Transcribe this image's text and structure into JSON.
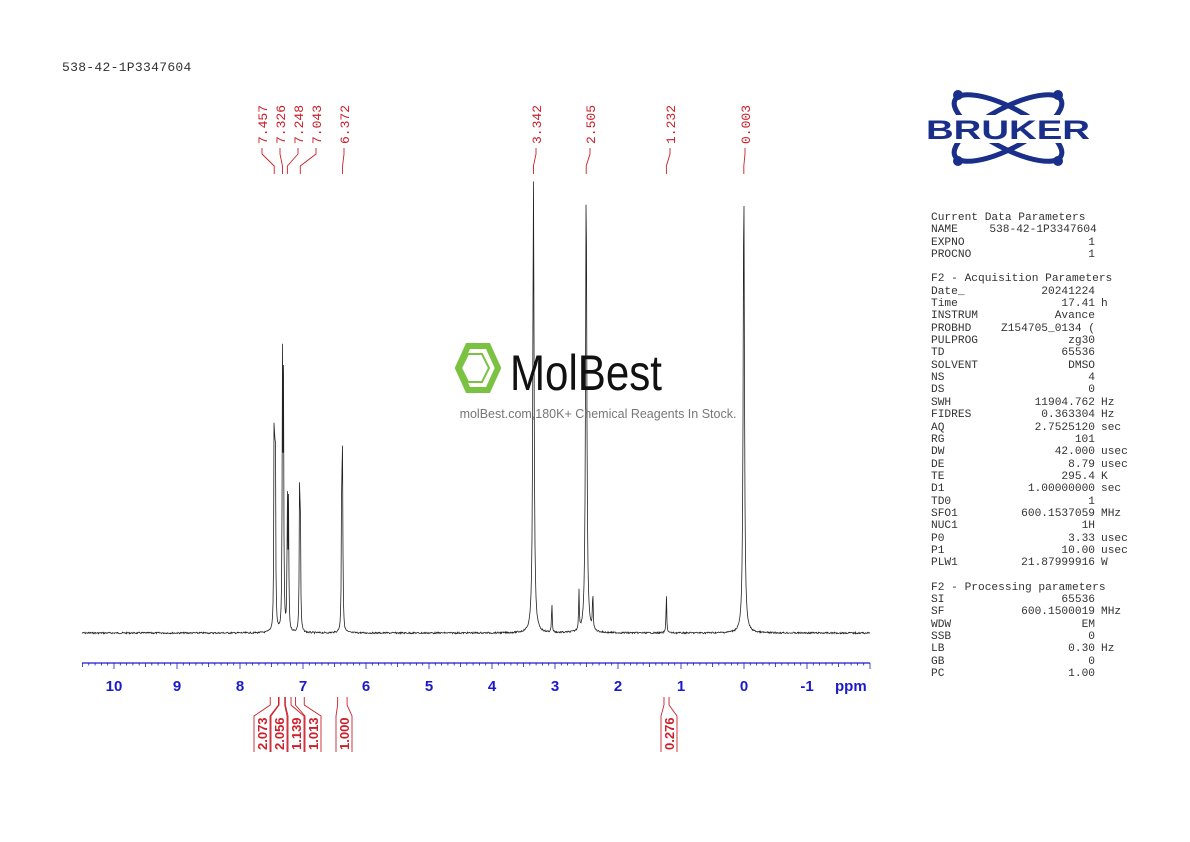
{
  "title": "538-42-1P3347604",
  "watermark": {
    "brand": "MolBest",
    "tagline": "molBest.com,180K+ Chemical Reagents In Stock.",
    "color": "#7cc242"
  },
  "logo": {
    "text": "BRUKER",
    "color": "#1a2f8a"
  },
  "params": {
    "current": {
      "header": "Current Data Parameters",
      "rows": [
        [
          "NAME",
          "538-42-1P3347604",
          ""
        ],
        [
          "EXPNO",
          "1",
          ""
        ],
        [
          "PROCNO",
          "1",
          ""
        ]
      ]
    },
    "acq": {
      "header": "F2 - Acquisition Parameters",
      "rows": [
        [
          "Date_",
          "20241224",
          ""
        ],
        [
          "Time",
          "17.41",
          "h"
        ],
        [
          "INSTRUM",
          "Avance",
          ""
        ],
        [
          "PROBHD",
          "Z154705_0134 (",
          ""
        ],
        [
          "PULPROG",
          "zg30",
          ""
        ],
        [
          "TD",
          "65536",
          ""
        ],
        [
          "SOLVENT",
          "DMSO",
          ""
        ],
        [
          "NS",
          "4",
          ""
        ],
        [
          "DS",
          "0",
          ""
        ],
        [
          "SWH",
          "11904.762",
          "Hz"
        ],
        [
          "FIDRES",
          "0.363304",
          "Hz"
        ],
        [
          "AQ",
          "2.7525120",
          "sec"
        ],
        [
          "RG",
          "101",
          ""
        ],
        [
          "DW",
          "42.000",
          "usec"
        ],
        [
          "DE",
          "8.79",
          "usec"
        ],
        [
          "TE",
          "295.4",
          "K"
        ],
        [
          "D1",
          "1.00000000",
          "sec"
        ],
        [
          "TD0",
          "1",
          ""
        ],
        [
          "SFO1",
          "600.1537059",
          "MHz"
        ],
        [
          "NUC1",
          "1H",
          ""
        ],
        [
          "P0",
          "3.33",
          "usec"
        ],
        [
          "P1",
          "10.00",
          "usec"
        ],
        [
          "PLW1",
          "21.87999916",
          "W"
        ]
      ]
    },
    "proc": {
      "header": "F2 - Processing parameters",
      "rows": [
        [
          "SI",
          "65536",
          ""
        ],
        [
          "SF",
          "600.1500019",
          "MHz"
        ],
        [
          "WDW",
          "EM",
          ""
        ],
        [
          "SSB",
          "0",
          ""
        ],
        [
          "LB",
          "0.30",
          "Hz"
        ],
        [
          "GB",
          "0",
          ""
        ],
        [
          "PC",
          "1.00",
          ""
        ]
      ]
    }
  },
  "chart_data": {
    "type": "line",
    "xlabel": "ppm",
    "xlim": [
      10.5,
      -2.0
    ],
    "xticks": [
      "10",
      "9",
      "8",
      "7",
      "6",
      "5",
      "4",
      "3",
      "2",
      "1",
      "0",
      "-1"
    ],
    "tick_values": [
      10,
      9,
      8,
      7,
      6,
      5,
      4,
      3,
      2,
      1,
      0,
      -1
    ],
    "peak_labels": [
      "7.457",
      "7.326",
      "7.248",
      "7.043",
      "6.372",
      "3.342",
      "2.505",
      "1.232",
      "0.003"
    ],
    "peaks": [
      {
        "ppm": 7.457,
        "intensity": 0.55
      },
      {
        "ppm": 7.44,
        "intensity": 0.5
      },
      {
        "ppm": 7.326,
        "intensity": 0.57
      },
      {
        "ppm": 7.31,
        "intensity": 0.52
      },
      {
        "ppm": 7.248,
        "intensity": 0.3
      },
      {
        "ppm": 7.23,
        "intensity": 0.27
      },
      {
        "ppm": 7.055,
        "intensity": 0.28
      },
      {
        "ppm": 7.043,
        "intensity": 0.29
      },
      {
        "ppm": 6.385,
        "intensity": 0.37
      },
      {
        "ppm": 6.372,
        "intensity": 0.35
      },
      {
        "ppm": 3.342,
        "intensity": 1.0
      },
      {
        "ppm": 3.05,
        "intensity": 0.07
      },
      {
        "ppm": 2.62,
        "intensity": 0.09
      },
      {
        "ppm": 2.505,
        "intensity": 1.0
      },
      {
        "ppm": 2.4,
        "intensity": 0.09
      },
      {
        "ppm": 1.232,
        "intensity": 0.09
      },
      {
        "ppm": 0.003,
        "intensity": 1.0
      }
    ],
    "integrals": [
      {
        "value": "2.073",
        "from": 7.52,
        "to": 7.39
      },
      {
        "value": "2.056",
        "from": 7.38,
        "to": 7.29
      },
      {
        "value": "1.139",
        "from": 7.28,
        "to": 7.19
      },
      {
        "value": "1.013",
        "from": 7.12,
        "to": 6.98
      },
      {
        "value": "1.000",
        "from": 6.45,
        "to": 6.3
      },
      {
        "value": "0.276",
        "from": 1.27,
        "to": 1.19
      }
    ],
    "colors": {
      "spectrum": "#222222",
      "axis": "#1a1acc",
      "labels": "#cc1f2a"
    }
  }
}
